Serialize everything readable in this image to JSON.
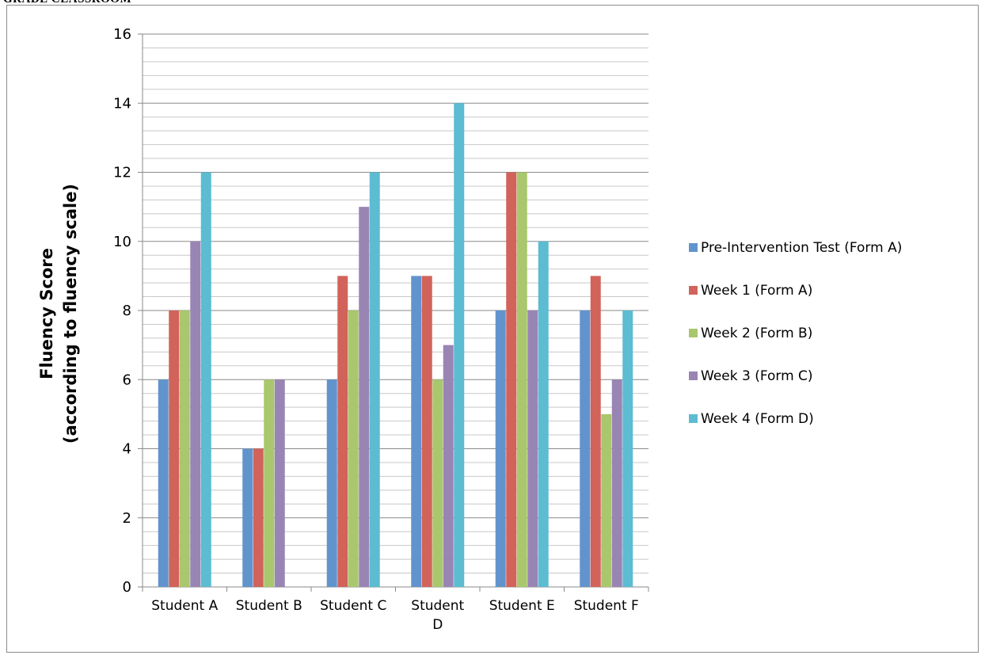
{
  "header": {
    "text": "GRADE CLASSROOM"
  },
  "chart_data": {
    "type": "bar",
    "categories": [
      [
        "Student A"
      ],
      [
        "Student B"
      ],
      [
        "Student C"
      ],
      [
        "Student",
        "D"
      ],
      [
        "Student E"
      ],
      [
        "Student F"
      ]
    ],
    "series": [
      {
        "name": "Pre-Intervention Test (Form A)",
        "color": "#6194cd",
        "values": [
          6,
          4,
          6,
          9,
          8,
          8
        ]
      },
      {
        "name": "Week 1 (Form A)",
        "color": "#d1635b",
        "values": [
          8,
          4,
          9,
          9,
          12,
          9
        ]
      },
      {
        "name": "Week 2 (Form B)",
        "color": "#a9c76c",
        "values": [
          8,
          6,
          8,
          6,
          12,
          5
        ]
      },
      {
        "name": "Week 3 (Form C)",
        "color": "#9985b4",
        "values": [
          10,
          6,
          11,
          7,
          8,
          6
        ]
      },
      {
        "name": "Week 4 (Form D)",
        "color": "#5cbcd1",
        "values": [
          12,
          0,
          12,
          14,
          10,
          8
        ]
      }
    ],
    "ylabel_lines": [
      "Fluency Score",
      "(according to fluency scale)"
    ],
    "xlabel": "",
    "ylim": [
      0,
      16
    ],
    "yticks": [
      0,
      2,
      4,
      6,
      8,
      10,
      12,
      14,
      16
    ],
    "minor_grid_step": 0.4,
    "grid": true,
    "legend_position": "right"
  }
}
